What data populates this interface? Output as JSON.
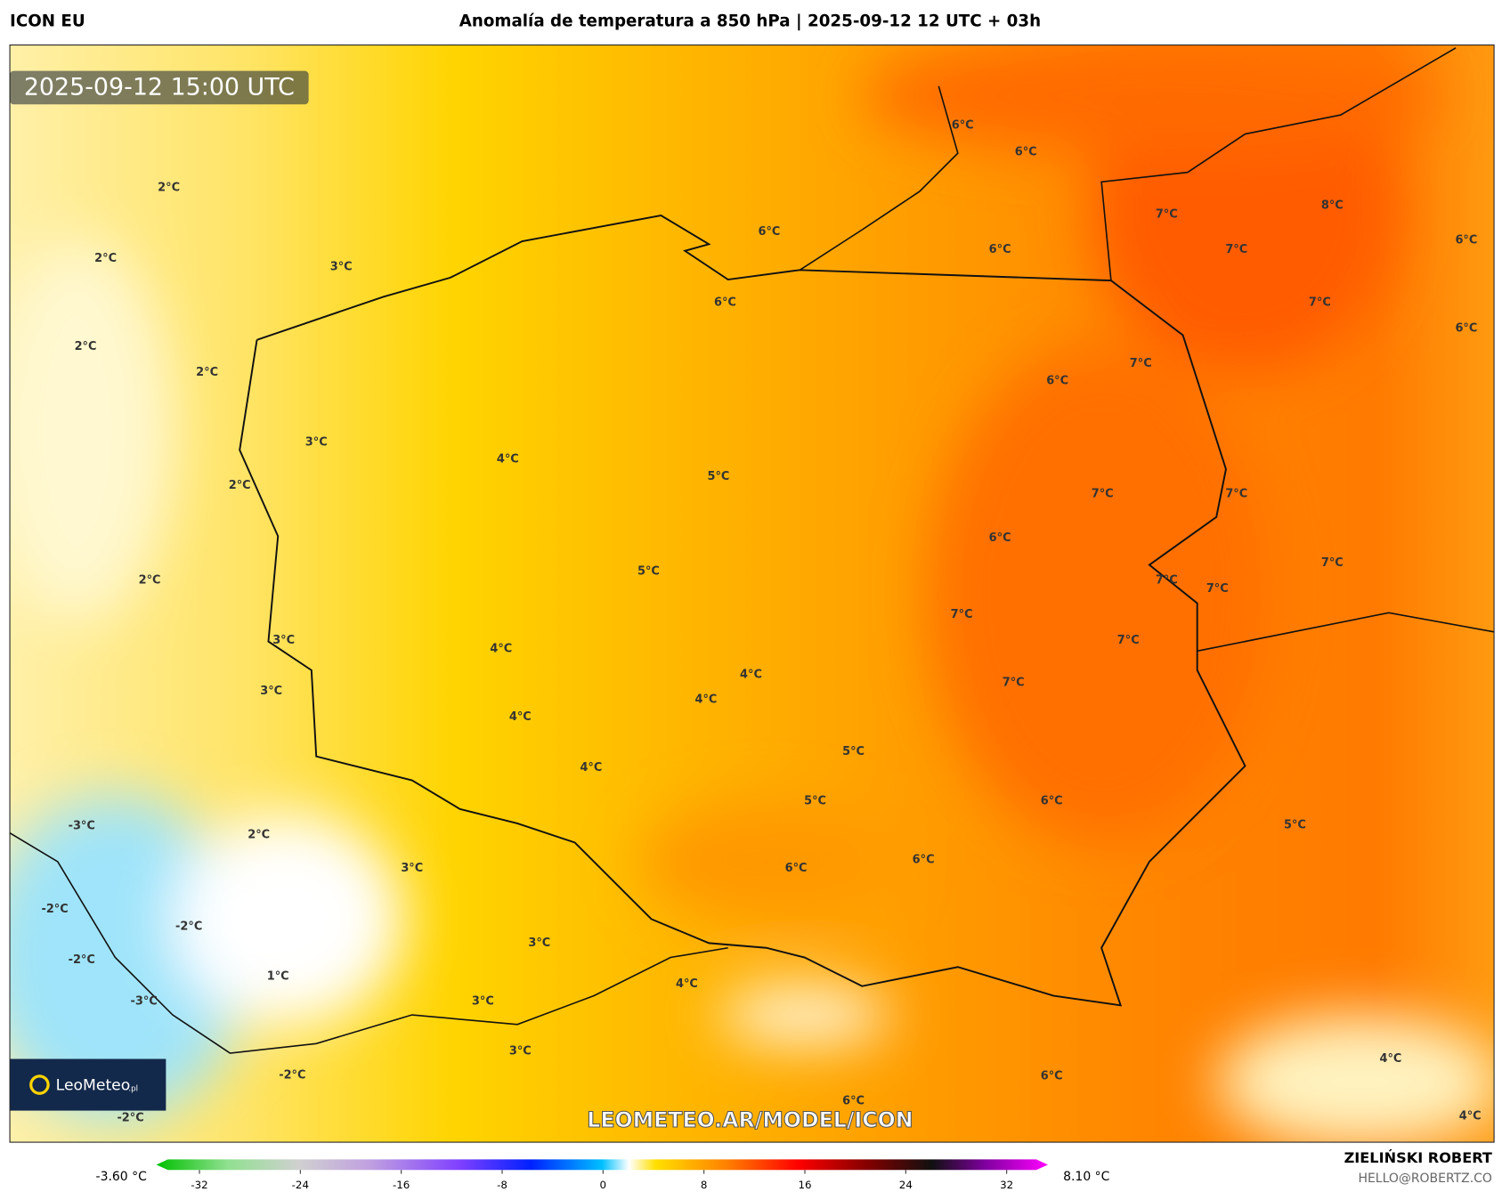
{
  "header": {
    "model": "ICON EU",
    "title": "Anomalía de temperatura a 850 hPa | 2025-09-12 12 UTC + 03h"
  },
  "map": {
    "timestamp": "2025-09-12 15:00 UTC",
    "labels": [
      "6°C",
      "6°C",
      "7°C",
      "8°C",
      "6°C",
      "6°C",
      "7°C",
      "6°C",
      "6°C",
      "7°C",
      "6°C",
      "2°C",
      "2°C",
      "3°C",
      "2°C",
      "2°C",
      "7°C",
      "6°C",
      "3°C",
      "4°C",
      "5°C",
      "2°C",
      "7°C",
      "7°C",
      "6°C",
      "7°C",
      "2°C",
      "5°C",
      "7°C",
      "7°C",
      "7°C",
      "7°C",
      "3°C",
      "4°C",
      "4°C",
      "3°C",
      "4°C",
      "7°C",
      "4°C",
      "5°C",
      "4°C",
      "5°C",
      "6°C",
      "-3°C",
      "5°C",
      "2°C",
      "6°C",
      "3°C",
      "6°C",
      "-2°C",
      "-2°C",
      "3°C",
      "-2°C",
      "1°C",
      "4°C",
      "3°C",
      "-3°C",
      "4°C",
      "3°C",
      "-2°C",
      "6°C",
      "6°C",
      "-2°C",
      "4°C"
    ],
    "watermark": "LEOMETEO.AR/MODEL/ICON",
    "logo": "LeoMeteo",
    "logo_suffix": ".pl",
    "colorbar": {
      "min_label": "-3.60 °C",
      "max_label": "8.10 °C",
      "ticks": [
        -32,
        -24,
        -16,
        -8,
        0,
        8,
        16,
        24,
        32
      ]
    }
  },
  "footer": {
    "author": "ZIELIŃSKI ROBERT",
    "email": "HELLO@ROBERTZ.CO"
  }
}
